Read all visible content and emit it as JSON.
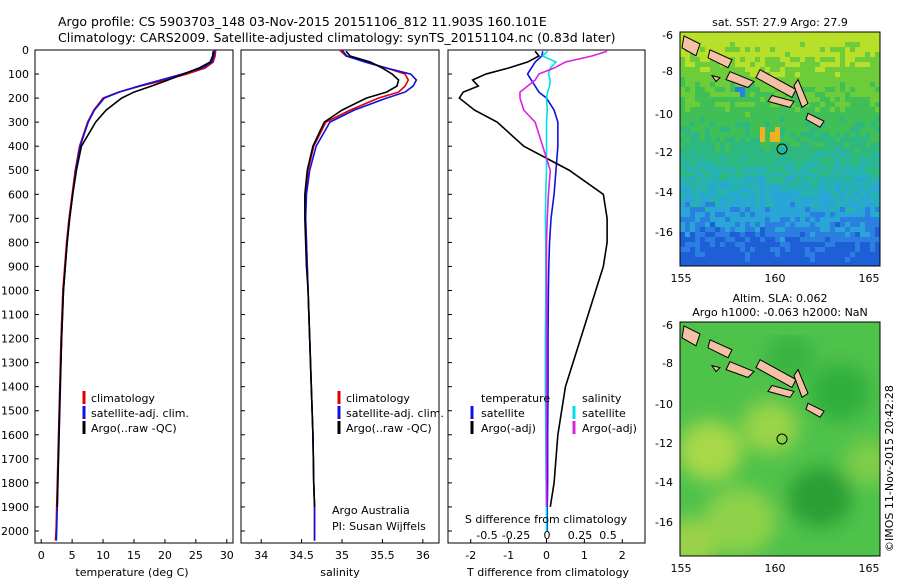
{
  "header": {
    "line1": "Argo profile: CS 5903703_148 03-Nov-2015 20151106_812 11.903S 160.101E",
    "line2": "Climatology: CARS2009. Satellite-adjusted climatology: synTS_20151104.nc (0.83d later)"
  },
  "colors": {
    "climatology": "#e00000",
    "satellite": "#1010e0",
    "argo": "#000000",
    "salinity_sat": "#00e0e8",
    "salinity_argo": "#e020e0"
  },
  "panels": {
    "temperature": {
      "xlabel": "temperature (deg C)",
      "xticks": [
        0,
        5,
        10,
        15,
        20,
        25,
        30
      ],
      "legend": [
        "climatology",
        "satellite-adj. clim.",
        "Argo(..raw -QC)"
      ]
    },
    "salinity": {
      "xlabel": "salinity",
      "xticks": [
        34,
        34.5,
        35,
        35.5,
        36
      ],
      "legend": [
        "climatology",
        "satellite-adj. clim.",
        "Argo(..raw -QC)"
      ],
      "credit1": "Argo Australia",
      "credit2": "PI: Susan Wijffels"
    },
    "difference": {
      "top_label": "S difference from climatology",
      "top_ticks": [
        "-0.5",
        "-0.25",
        "0",
        "0.25",
        "0.5"
      ],
      "xlabel": "T difference from climatology",
      "xticks": [
        -2,
        -1,
        0,
        1,
        2
      ],
      "legend_left_title": "temperature",
      "legend_left": [
        "satellite",
        "Argo(-adj)"
      ],
      "legend_right_title": "salinity",
      "legend_right": [
        "satellite",
        "Argo(-adj)"
      ]
    }
  },
  "depth_axis": {
    "ticks": [
      0,
      100,
      200,
      300,
      400,
      500,
      600,
      700,
      800,
      900,
      1000,
      1100,
      1200,
      1300,
      1400,
      1500,
      1600,
      1700,
      1800,
      1900,
      2000
    ]
  },
  "maps": {
    "sst": {
      "title": "sat. SST: 27.9 Argo: 27.9",
      "xticks": [
        "155",
        "160",
        "165"
      ],
      "yticks": [
        "-6",
        "-8",
        "-10",
        "-12",
        "-14",
        "-16"
      ]
    },
    "sla": {
      "title1": "Altim. SLA: 0.062",
      "title2": "Argo h1000: -0.063 h2000: NaN",
      "xticks": [
        "155",
        "160",
        "165"
      ],
      "yticks": [
        "-6",
        "-8",
        "-10",
        "-12",
        "-14",
        "-16"
      ]
    }
  },
  "footer": {
    "credit": "©IMOS 11-Nov-2015 20:42:28"
  },
  "chart_data": [
    {
      "type": "line",
      "name": "temperature profile",
      "xlim": [
        -1,
        31
      ],
      "ylim": [
        2050,
        0
      ],
      "series": [
        {
          "name": "climatology",
          "x": [
            28.2,
            28.1,
            27.8,
            26.5,
            23.5,
            20,
            16,
            12.5,
            10,
            8.5,
            7.5,
            6.2,
            5.5,
            5,
            4.5,
            4.1,
            3.8,
            3.5,
            3.2,
            3,
            2.8,
            2.6,
            2.5,
            2.4,
            2.3
          ],
          "y": [
            0,
            25,
            50,
            75,
            100,
            125,
            150,
            175,
            200,
            250,
            300,
            400,
            500,
            600,
            700,
            800,
            900,
            1000,
            1200,
            1400,
            1600,
            1800,
            1900,
            2000,
            2040
          ]
        },
        {
          "name": "satellite-adj. clim.",
          "x": [
            28,
            27.9,
            27.6,
            26,
            22.8,
            19.3,
            15.8,
            12.6,
            10.2,
            8.6,
            7.6,
            6.3,
            5.6,
            5.1,
            4.6,
            4.2,
            3.9,
            3.6,
            3.3,
            3.05,
            2.85,
            2.68,
            2.6,
            2.5,
            2.45
          ],
          "y": [
            0,
            25,
            50,
            75,
            100,
            125,
            150,
            175,
            200,
            250,
            300,
            400,
            500,
            600,
            700,
            800,
            900,
            1000,
            1200,
            1400,
            1600,
            1800,
            1900,
            2000,
            2040
          ]
        },
        {
          "name": "Argo(..raw -QC)",
          "x": [
            27.8,
            27.7,
            27.3,
            25.5,
            23,
            20.5,
            17.8,
            15,
            13,
            10.5,
            8.8,
            6.5,
            5.7,
            5.1,
            4.6,
            4.2,
            3.9,
            3.6,
            3.3,
            3.1,
            2.9,
            2.7,
            2.6
          ],
          "y": [
            5,
            25,
            50,
            75,
            100,
            125,
            150,
            175,
            200,
            250,
            300,
            400,
            500,
            600,
            700,
            800,
            900,
            1000,
            1200,
            1400,
            1600,
            1800,
            1900
          ]
        }
      ]
    },
    {
      "type": "line",
      "name": "salinity profile",
      "xlim": [
        33.75,
        36.2
      ],
      "ylim": [
        2050,
        0
      ],
      "series": [
        {
          "name": "climatology",
          "x": [
            34.97,
            35.05,
            35.3,
            35.55,
            35.78,
            35.82,
            35.78,
            35.7,
            35.45,
            35.1,
            34.8,
            34.65,
            34.58,
            34.55,
            34.55,
            34.56,
            34.57,
            34.58,
            34.6,
            34.62,
            34.64,
            34.65,
            34.66,
            34.66,
            34.66
          ],
          "y": [
            0,
            25,
            50,
            75,
            100,
            125,
            150,
            175,
            200,
            250,
            300,
            400,
            500,
            600,
            700,
            800,
            900,
            1000,
            1200,
            1400,
            1600,
            1800,
            1900,
            2000,
            2040
          ]
        },
        {
          "name": "satellite-adj. clim.",
          "x": [
            35,
            35.06,
            35.28,
            35.55,
            35.85,
            35.92,
            35.88,
            35.78,
            35.55,
            35.15,
            34.85,
            34.68,
            34.6,
            34.56,
            34.55,
            34.56,
            34.57,
            34.58,
            34.6,
            34.62,
            34.64,
            34.65,
            34.66,
            34.66,
            34.66
          ],
          "y": [
            0,
            25,
            50,
            75,
            100,
            125,
            150,
            175,
            200,
            250,
            300,
            400,
            500,
            600,
            700,
            800,
            900,
            1000,
            1200,
            1400,
            1600,
            1800,
            1900,
            2000,
            2040
          ]
        },
        {
          "name": "Argo(..raw -QC)",
          "x": [
            35.05,
            35.1,
            35.35,
            35.5,
            35.62,
            35.7,
            35.68,
            35.55,
            35.3,
            35,
            34.78,
            34.64,
            34.57,
            34.54,
            34.54,
            34.55,
            34.56,
            34.58,
            34.6,
            34.62,
            34.64,
            34.65,
            34.66
          ],
          "y": [
            5,
            25,
            50,
            75,
            100,
            125,
            150,
            175,
            200,
            250,
            300,
            400,
            500,
            600,
            700,
            800,
            900,
            1000,
            1200,
            1400,
            1600,
            1800,
            1900
          ]
        }
      ]
    },
    {
      "type": "line",
      "name": "difference from climatology",
      "xlim": [
        -2.6,
        2.6
      ],
      "ylim": [
        2050,
        0
      ],
      "series": [
        {
          "name": "temperature satellite",
          "x": [
            -0.1,
            -0.12,
            -0.3,
            -0.4,
            -0.5,
            -0.4,
            -0.3,
            -0.2,
            0,
            0.2,
            0.3,
            0.3,
            0.25,
            0.2,
            0.12,
            0.08,
            0.06,
            0.05,
            0.04,
            0.04,
            0.03,
            0.03,
            0.02,
            0.02
          ],
          "y": [
            5,
            25,
            50,
            75,
            100,
            125,
            150,
            175,
            200,
            250,
            300,
            400,
            500,
            600,
            700,
            800,
            900,
            1000,
            1200,
            1400,
            1600,
            1800,
            1900,
            2000
          ]
        },
        {
          "name": "temperature Argo(-adj)",
          "x": [
            -0.3,
            -0.2,
            -0.5,
            -1,
            -1.6,
            -1.95,
            -1.8,
            -2.2,
            -2.3,
            -1.9,
            -1.3,
            -0.6,
            0.6,
            1.5,
            1.6,
            1.6,
            1.5,
            1.3,
            0.9,
            0.5,
            0.3,
            0.2,
            0.1
          ],
          "y": [
            5,
            25,
            50,
            75,
            100,
            125,
            150,
            175,
            200,
            250,
            300,
            400,
            500,
            600,
            700,
            800,
            900,
            1000,
            1200,
            1400,
            1600,
            1800,
            1900
          ]
        },
        {
          "name": "salinity satellite",
          "x": [
            0.03,
            -0.1,
            0.25,
            0.1,
            0.05,
            0.1,
            0.08,
            0.03,
            0,
            0.02,
            0,
            0,
            0,
            -0.02,
            -0.03,
            -0.02,
            -0.02,
            -0.02,
            -0.03,
            -0.03,
            -0.02,
            -0.01,
            0,
            0
          ],
          "y": [
            5,
            25,
            50,
            75,
            100,
            125,
            150,
            175,
            200,
            250,
            300,
            400,
            500,
            600,
            700,
            800,
            900,
            1000,
            1200,
            1400,
            1600,
            1800,
            1900,
            2000
          ]
        },
        {
          "name": "salinity Argo(-adj)",
          "x": [
            1.6,
            1.2,
            0.5,
            0.2,
            -0.2,
            -0.3,
            -0.5,
            -0.7,
            -0.7,
            -0.6,
            -0.3,
            -0.1,
            0.1,
            0.05,
            0.02,
            0,
            0,
            0,
            0,
            0,
            0,
            0,
            0
          ],
          "y": [
            5,
            25,
            50,
            75,
            100,
            125,
            150,
            175,
            200,
            250,
            300,
            400,
            500,
            600,
            700,
            800,
            900,
            1000,
            1200,
            1400,
            1600,
            1800,
            1900
          ]
        }
      ]
    },
    {
      "type": "heatmap",
      "name": "sat SST map",
      "xlim": [
        155,
        165
      ],
      "ylim": [
        -17.8,
        -6
      ]
    },
    {
      "type": "heatmap",
      "name": "altim SLA map",
      "xlim": [
        155,
        165
      ],
      "ylim": [
        -17.8,
        -6
      ]
    }
  ]
}
